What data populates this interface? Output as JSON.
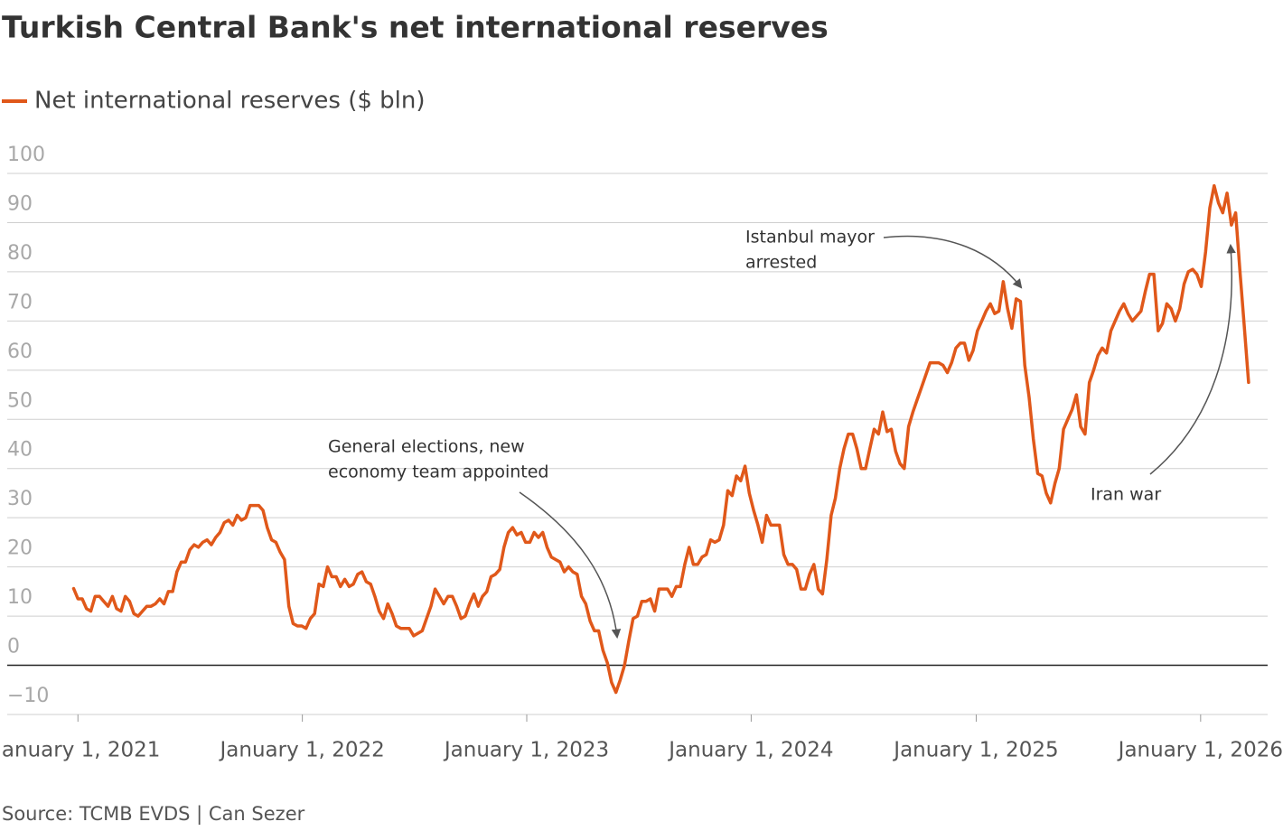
{
  "chart_data": {
    "type": "line",
    "title": "Turkish Central Bank's net international reserves",
    "source": "Source: TCMB EVDS | Can Sezer",
    "xlim": [
      "2020-09-08",
      "2026-04-20"
    ],
    "xticks": [
      {
        "value": "2021-01-01",
        "label": "January 1, 2021"
      },
      {
        "value": "2022-01-01",
        "label": "January 1, 2022"
      },
      {
        "value": "2023-01-01",
        "label": "January 1, 2023"
      },
      {
        "value": "2024-01-01",
        "label": "January 1, 2024"
      },
      {
        "value": "2025-01-01",
        "label": "January 1, 2025"
      },
      {
        "value": "2026-01-01",
        "label": "January 1, 2026"
      }
    ],
    "ylim": [
      -10,
      100
    ],
    "yticks": [
      {
        "value": -10,
        "label": "−10"
      },
      0,
      10,
      20,
      30,
      40,
      50,
      60,
      70,
      80,
      90,
      100
    ],
    "grid": true,
    "annotations": [
      {
        "lines": [
          "General elections, new",
          "economy team appointed"
        ]
      },
      {
        "lines": [
          "Istanbul mayor",
          "arrested"
        ]
      },
      {
        "lines": [
          "Iran war"
        ]
      }
    ],
    "x": [
      "2020-12-25",
      "2021-01-01",
      "2021-01-08",
      "2021-01-15",
      "2021-01-22",
      "2021-01-29",
      "2021-02-05",
      "2021-02-12",
      "2021-02-19",
      "2021-02-26",
      "2021-03-05",
      "2021-03-12",
      "2021-03-19",
      "2021-03-26",
      "2021-04-02",
      "2021-04-09",
      "2021-04-16",
      "2021-04-23",
      "2021-04-30",
      "2021-05-07",
      "2021-05-14",
      "2021-05-21",
      "2021-05-28",
      "2021-06-04",
      "2021-06-11",
      "2021-06-18",
      "2021-06-25",
      "2021-07-02",
      "2021-07-09",
      "2021-07-16",
      "2021-07-23",
      "2021-07-30",
      "2021-08-06",
      "2021-08-13",
      "2021-08-20",
      "2021-08-27",
      "2021-09-03",
      "2021-09-10",
      "2021-09-17",
      "2021-09-24",
      "2021-10-01",
      "2021-10-08",
      "2021-10-15",
      "2021-10-22",
      "2021-10-29",
      "2021-11-05",
      "2021-11-12",
      "2021-11-19",
      "2021-11-26",
      "2021-12-03",
      "2021-12-10",
      "2021-12-17",
      "2021-12-24",
      "2021-12-31",
      "2022-01-07",
      "2022-01-14",
      "2022-01-21",
      "2022-01-28",
      "2022-02-04",
      "2022-02-11",
      "2022-02-18",
      "2022-02-25",
      "2022-03-04",
      "2022-03-11",
      "2022-03-18",
      "2022-03-25",
      "2022-04-01",
      "2022-04-08",
      "2022-04-15",
      "2022-04-22",
      "2022-04-29",
      "2022-05-06",
      "2022-05-13",
      "2022-05-20",
      "2022-05-27",
      "2022-06-03",
      "2022-06-10",
      "2022-06-17",
      "2022-06-24",
      "2022-07-01",
      "2022-07-08",
      "2022-07-15",
      "2022-07-22",
      "2022-07-29",
      "2022-08-05",
      "2022-08-12",
      "2022-08-19",
      "2022-08-26",
      "2022-09-02",
      "2022-09-09",
      "2022-09-16",
      "2022-09-23",
      "2022-09-30",
      "2022-10-07",
      "2022-10-14",
      "2022-10-21",
      "2022-10-28",
      "2022-11-04",
      "2022-11-11",
      "2022-11-18",
      "2022-11-25",
      "2022-12-02",
      "2022-12-09",
      "2022-12-16",
      "2022-12-23",
      "2022-12-30",
      "2023-01-06",
      "2023-01-13",
      "2023-01-20",
      "2023-01-27",
      "2023-02-03",
      "2023-02-10",
      "2023-02-17",
      "2023-02-24",
      "2023-03-03",
      "2023-03-10",
      "2023-03-17",
      "2023-03-24",
      "2023-03-31",
      "2023-04-07",
      "2023-04-14",
      "2023-04-21",
      "2023-04-28",
      "2023-05-05",
      "2023-05-12",
      "2023-05-19",
      "2023-05-26",
      "2023-06-02",
      "2023-06-09",
      "2023-06-16",
      "2023-06-23",
      "2023-06-30",
      "2023-07-07",
      "2023-07-14",
      "2023-07-21",
      "2023-07-28",
      "2023-08-04",
      "2023-08-11",
      "2023-08-18",
      "2023-08-25",
      "2023-09-01",
      "2023-09-08",
      "2023-09-15",
      "2023-09-22",
      "2023-09-29",
      "2023-10-06",
      "2023-10-13",
      "2023-10-20",
      "2023-10-27",
      "2023-11-03",
      "2023-11-10",
      "2023-11-17",
      "2023-11-24",
      "2023-12-01",
      "2023-12-08",
      "2023-12-15",
      "2023-12-22",
      "2023-12-29",
      "2024-01-05",
      "2024-01-12",
      "2024-01-19",
      "2024-01-26",
      "2024-02-02",
      "2024-02-09",
      "2024-02-16",
      "2024-02-23",
      "2024-03-01",
      "2024-03-08",
      "2024-03-15",
      "2024-03-22",
      "2024-03-29",
      "2024-04-05",
      "2024-04-12",
      "2024-04-19",
      "2024-04-26",
      "2024-05-03",
      "2024-05-10",
      "2024-05-17",
      "2024-05-24",
      "2024-05-31",
      "2024-06-07",
      "2024-06-14",
      "2024-06-21",
      "2024-06-28",
      "2024-07-05",
      "2024-07-12",
      "2024-07-19",
      "2024-07-26",
      "2024-08-02",
      "2024-08-09",
      "2024-08-16",
      "2024-08-23",
      "2024-08-30",
      "2024-09-06",
      "2024-09-13",
      "2024-09-20",
      "2024-09-27",
      "2024-10-04",
      "2024-10-11",
      "2024-10-18",
      "2024-10-25",
      "2024-11-01",
      "2024-11-08",
      "2024-11-15",
      "2024-11-22",
      "2024-11-29",
      "2024-12-06",
      "2024-12-13",
      "2024-12-20",
      "2024-12-27",
      "2025-01-03",
      "2025-01-10",
      "2025-01-17",
      "2025-01-24",
      "2025-01-31",
      "2025-02-07",
      "2025-02-14",
      "2025-02-21",
      "2025-02-28",
      "2025-03-07",
      "2025-03-14",
      "2025-03-21",
      "2025-03-28",
      "2025-04-04",
      "2025-04-11",
      "2025-04-18",
      "2025-04-25",
      "2025-05-02",
      "2025-05-09",
      "2025-05-16",
      "2025-05-23",
      "2025-05-30",
      "2025-06-06",
      "2025-06-13",
      "2025-06-20",
      "2025-06-27",
      "2025-07-04",
      "2025-07-11",
      "2025-07-18",
      "2025-07-25",
      "2025-08-01",
      "2025-08-08",
      "2025-08-15",
      "2025-08-22",
      "2025-08-29",
      "2025-09-05",
      "2025-09-12",
      "2025-09-19",
      "2025-09-26",
      "2025-10-03",
      "2025-10-10",
      "2025-10-17",
      "2025-10-24",
      "2025-10-31",
      "2025-11-07",
      "2025-11-14",
      "2025-11-21",
      "2025-11-28",
      "2025-12-05",
      "2025-12-12",
      "2025-12-19",
      "2025-12-26",
      "2026-01-02",
      "2026-01-09",
      "2026-01-16",
      "2026-01-23",
      "2026-01-30",
      "2026-02-06",
      "2026-02-13",
      "2026-02-20",
      "2026-02-27",
      "2026-03-06",
      "2026-03-13",
      "2026-03-20"
    ],
    "series": [
      {
        "name": "Net international reserves ($ bln)",
        "color": "#e0581a",
        "values": [
          15.6,
          13.5,
          13.5,
          11.5,
          11,
          14,
          14,
          13,
          12,
          14,
          11.5,
          11,
          14,
          13,
          10.5,
          10,
          11,
          12,
          12,
          12.5,
          13.5,
          12.5,
          15,
          15,
          19,
          21,
          21,
          23.5,
          24.5,
          24,
          25,
          25.5,
          24.5,
          26,
          27,
          29,
          29.5,
          28.5,
          30.5,
          29.5,
          30,
          32.5,
          32.5,
          32.5,
          31.5,
          28,
          25.5,
          25,
          23,
          21.5,
          12,
          8.5,
          8,
          8,
          7.5,
          9.5,
          10.5,
          16.5,
          16,
          20,
          18,
          18,
          16,
          17.5,
          16,
          16.5,
          18.5,
          19,
          17,
          16.5,
          14,
          11,
          9.5,
          12.5,
          10.5,
          8,
          7.5,
          7.5,
          7.5,
          6,
          6.5,
          7,
          9.5,
          12,
          15.5,
          14,
          12.5,
          14,
          14,
          12,
          9.5,
          10,
          12.5,
          14.5,
          12,
          14,
          15,
          18,
          18.5,
          19.5,
          24,
          27,
          28,
          26.5,
          27,
          25,
          25,
          27,
          26,
          27,
          24,
          22,
          21.5,
          21,
          19,
          20,
          19,
          18.5,
          14,
          12.5,
          9,
          7,
          7,
          3,
          0.5,
          -3.5,
          -5.5,
          -3,
          0,
          5,
          9.5,
          10,
          13,
          13,
          13.5,
          11,
          15.5,
          15.5,
          15.5,
          14,
          16,
          16,
          20.5,
          24,
          20.5,
          20.5,
          22,
          22.5,
          25.5,
          25,
          25.5,
          28.5,
          35.5,
          34.5,
          38.5,
          37.5,
          40.5,
          35,
          31.5,
          28.5,
          25,
          30.5,
          28.5,
          28.5,
          28.5,
          22.5,
          20.5,
          20.5,
          19.5,
          15.5,
          15.5,
          18.5,
          20.5,
          15.5,
          14.5,
          21.5,
          30.5,
          34,
          40,
          44,
          47,
          47,
          44,
          40,
          40,
          44,
          48,
          47,
          51.5,
          47.5,
          48,
          43.5,
          41,
          40,
          48.5,
          51.5,
          54,
          56.5,
          59,
          61.5,
          61.5,
          61.5,
          61,
          59.5,
          61.5,
          64.5,
          65.5,
          65.5,
          62,
          64,
          68,
          70,
          72,
          73.5,
          71.5,
          72,
          78,
          72.5,
          68.5,
          74.5,
          74,
          61,
          54.5,
          46,
          39,
          38.5,
          35,
          33,
          37,
          40,
          48,
          50,
          52,
          55,
          48.5,
          47,
          57.5,
          60,
          63,
          64.5,
          63.5,
          68,
          70,
          72,
          73.5,
          71.5,
          70,
          71,
          72,
          76,
          79.5,
          79.5,
          68,
          69.5,
          73.5,
          72.5,
          70,
          72.5,
          77.5,
          80,
          80.5,
          79.5,
          77,
          84,
          93,
          97.5,
          94,
          92,
          96,
          89.5,
          92,
          80,
          69,
          57.5
        ]
      }
    ]
  }
}
